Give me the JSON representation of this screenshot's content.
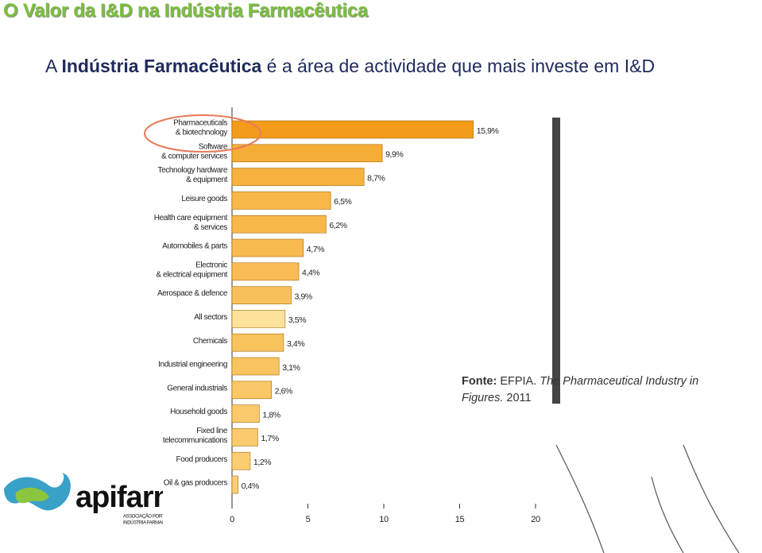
{
  "header": {
    "title": "O Valor da I&D na Indústria Farmacêutica",
    "subtitle": [
      "A ",
      "Indústria Farmacêutica",
      " é a área de actividade que mais investe em I&D"
    ]
  },
  "chart_data": {
    "type": "hbar",
    "categories": [
      [
        "Pharmaceuticals",
        "& biotechnology"
      ],
      [
        "Software",
        "& computer services"
      ],
      [
        "Technology hardware",
        "& equipment"
      ],
      [
        "Leisure goods"
      ],
      [
        "Health care equipment",
        "& services"
      ],
      [
        "Automobiles & parts"
      ],
      [
        "Electronic",
        "& electrical equipment"
      ],
      [
        "Aerospace & defence"
      ],
      [
        "All sectors"
      ],
      [
        "Chemicals"
      ],
      [
        "Industrial engineering"
      ],
      [
        "General industrials"
      ],
      [
        "Household goods"
      ],
      [
        "Fixed line",
        "telecommunications"
      ],
      [
        "Food producers"
      ],
      [
        "Oil & gas producers"
      ]
    ],
    "values": [
      15.9,
      9.9,
      8.7,
      6.5,
      6.2,
      4.7,
      4.4,
      3.9,
      3.5,
      3.4,
      3.1,
      2.6,
      1.8,
      1.7,
      1.2,
      0.4
    ],
    "value_labels": [
      "15,9%",
      "9,9%",
      "8,7%",
      "6,5%",
      "6,2%",
      "4,7%",
      "4,4%",
      "3,9%",
      "3,5%",
      "3,4%",
      "3,1%",
      "2,6%",
      "1,8%",
      "1,7%",
      "1,2%",
      "0,4%"
    ],
    "colors": [
      "#f39c1c",
      "#f6ad35",
      "#f6b13e",
      "#f7b749",
      "#f7b849",
      "#f7bb50",
      "#f8bd54",
      "#f8c05a",
      "#fde29b",
      "#f8c25d",
      "#f8c460",
      "#f9c766",
      "#f9ca6c",
      "#f9cb6e",
      "#facd72",
      "#facf77"
    ],
    "xlim": [
      0,
      20
    ],
    "xticks": [
      0,
      5,
      10,
      15,
      20
    ]
  },
  "source": [
    "Fonte:",
    " EFPIA. ",
    "The Pharmaceutical Industry in Figures.",
    " 2011"
  ],
  "logo": {
    "name": "apifarma",
    "tagline": [
      "ASSOCIAÇÃO PORTUGUESA DA",
      "INDÚSTRIA FARMACÊUTICA"
    ]
  }
}
